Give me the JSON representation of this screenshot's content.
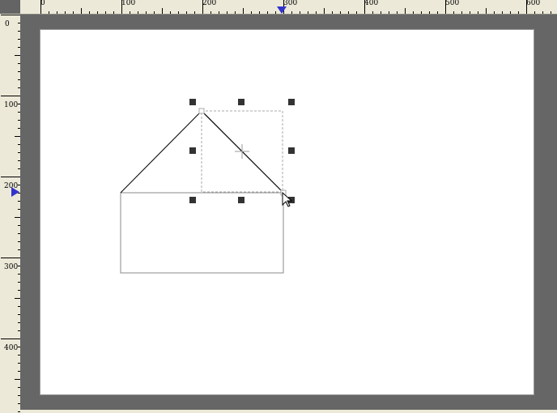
{
  "ruler_top": {
    "labels": [
      "0",
      "100",
      "200",
      "300",
      "400",
      "500",
      "600"
    ],
    "marker_color": "#3333cc",
    "marker_icon": "triangle-down"
  },
  "ruler_left": {
    "labels": [
      "0",
      "100",
      "200",
      "300",
      "400"
    ],
    "marker_color": "#3333cc",
    "marker_icon": "triangle-right"
  },
  "colors": {
    "workspace": "#666666",
    "page": "#ffffff",
    "ruler": "#ece9d8",
    "shape_stroke": "#000000",
    "selection_handle": "#333333",
    "selection_box": "#a8a8a8"
  },
  "drawing": {
    "shapes": [
      "house-roof-line",
      "house-body-rectangle"
    ],
    "selection_handles": 8,
    "cursor": "arrow-pointer-icon",
    "center_mark": "crosshair-icon"
  }
}
